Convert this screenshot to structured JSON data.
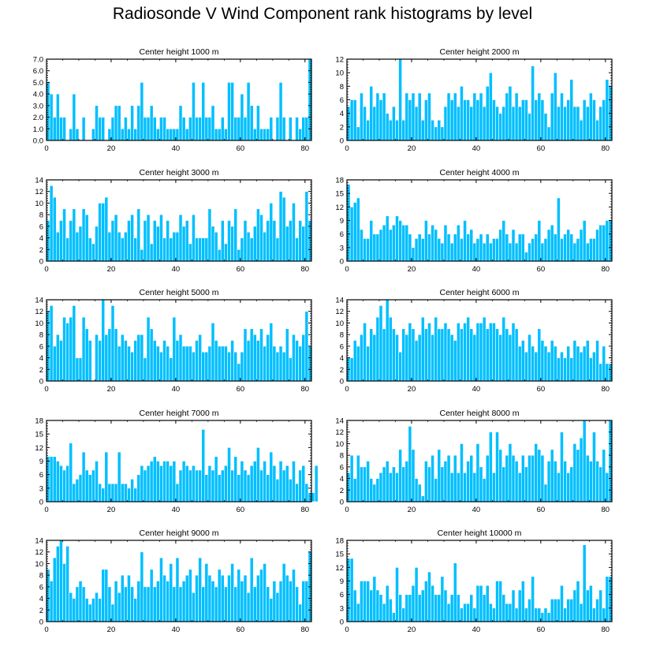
{
  "figure": {
    "title": "Radiosonde V Wind Component rank histograms by level",
    "bar_color": "#00bfff",
    "bar_edge_color": "#ffffff"
  },
  "chart_data": [
    {
      "type": "bar",
      "title": "Center height 1000 m",
      "xlim": [
        0,
        82
      ],
      "ylim": [
        0,
        7
      ],
      "x_ticks": [
        0,
        20,
        40,
        60,
        80
      ],
      "y_ticks": [
        0,
        1,
        2,
        3,
        4,
        5,
        6,
        7
      ],
      "y_tick_labels": [
        "0.0",
        "1.0",
        "2.0",
        "3.0",
        "4.0",
        "5.0",
        "6.0",
        "7.0"
      ],
      "values": [
        5,
        4,
        2,
        4,
        2,
        2,
        0,
        1,
        4,
        1,
        0,
        2,
        0,
        0,
        1,
        3,
        2,
        2,
        0,
        1,
        2,
        3,
        3,
        1,
        2,
        1,
        3,
        1,
        3,
        5,
        2,
        2,
        3,
        2,
        1,
        2,
        2,
        1,
        1,
        1,
        1,
        3,
        2,
        1,
        2,
        5,
        2,
        2,
        5,
        2,
        2,
        3,
        1,
        1,
        2,
        1,
        5,
        5,
        2,
        2,
        4,
        2,
        5,
        3,
        1,
        3,
        1,
        1,
        1,
        2,
        0,
        2,
        5,
        2,
        0,
        2,
        0,
        2,
        1,
        2,
        2,
        7
      ]
    },
    {
      "type": "bar",
      "title": "Center height 2000 m",
      "xlim": [
        0,
        82
      ],
      "ylim": [
        0,
        12
      ],
      "x_ticks": [
        0,
        20,
        40,
        60,
        80
      ],
      "y_ticks": [
        0,
        2,
        4,
        6,
        8,
        10,
        12
      ],
      "y_tick_labels": [
        "0",
        "2",
        "4",
        "6",
        "8",
        "10",
        "12"
      ],
      "values": [
        5,
        6,
        6,
        2,
        7,
        5,
        3,
        8,
        5,
        7,
        6,
        7,
        4,
        3,
        5,
        3,
        12,
        3,
        7,
        6,
        7,
        5,
        7,
        3,
        6,
        7,
        3,
        2,
        3,
        2,
        5,
        7,
        6,
        7,
        5,
        8,
        6,
        6,
        5,
        7,
        6,
        7,
        5,
        8,
        10,
        6,
        5,
        4,
        5,
        7,
        8,
        5,
        7,
        5,
        6,
        6,
        4,
        11,
        6,
        7,
        6,
        4,
        2,
        7,
        10,
        5,
        7,
        5,
        6,
        9,
        5,
        5,
        3,
        6,
        5,
        7,
        6,
        3,
        5,
        6,
        9,
        8
      ]
    },
    {
      "type": "bar",
      "title": "Center height 3000 m",
      "xlim": [
        0,
        82
      ],
      "ylim": [
        0,
        14
      ],
      "x_ticks": [
        0,
        20,
        40,
        60,
        80
      ],
      "y_ticks": [
        0,
        2,
        4,
        6,
        8,
        10,
        12,
        14
      ],
      "y_tick_labels": [
        "0",
        "2",
        "4",
        "6",
        "8",
        "10",
        "12",
        "14"
      ],
      "values": [
        7,
        13,
        11,
        5,
        7,
        9,
        4,
        7,
        9,
        5,
        6,
        9,
        8,
        4,
        3,
        6,
        10,
        10,
        11,
        5,
        7,
        8,
        5,
        4,
        5,
        7,
        8,
        4,
        9,
        2,
        7,
        8,
        3,
        7,
        6,
        8,
        4,
        7,
        4,
        5,
        5,
        8,
        6,
        7,
        3,
        8,
        4,
        4,
        4,
        4,
        9,
        6,
        5,
        2,
        7,
        3,
        7,
        6,
        9,
        2,
        4,
        7,
        5,
        4,
        6,
        9,
        8,
        5,
        7,
        10,
        7,
        4,
        12,
        11,
        6,
        7,
        10,
        4,
        7,
        6,
        12,
        7
      ]
    },
    {
      "type": "bar",
      "title": "Center height 4000 m",
      "xlim": [
        0,
        82
      ],
      "ylim": [
        0,
        18
      ],
      "x_ticks": [
        0,
        20,
        40,
        60,
        80
      ],
      "y_ticks": [
        0,
        3,
        6,
        9,
        12,
        15,
        18
      ],
      "y_tick_labels": [
        "0",
        "3",
        "6",
        "9",
        "12",
        "15",
        "18"
      ],
      "values": [
        17,
        12,
        13,
        14,
        7,
        5,
        5,
        9,
        6,
        6,
        7,
        8,
        10,
        7,
        8,
        10,
        9,
        8,
        8,
        6,
        3,
        5,
        6,
        5,
        9,
        6,
        8,
        7,
        5,
        4,
        8,
        6,
        4,
        6,
        8,
        5,
        9,
        6,
        7,
        4,
        5,
        6,
        4,
        6,
        4,
        5,
        5,
        7,
        9,
        6,
        4,
        7,
        4,
        6,
        6,
        2,
        4,
        5,
        6,
        9,
        4,
        5,
        7,
        8,
        6,
        14,
        5,
        6,
        7,
        6,
        4,
        5,
        7,
        9,
        4,
        5,
        5,
        7,
        8,
        8,
        9,
        9
      ]
    },
    {
      "type": "bar",
      "title": "Center height 5000 m",
      "xlim": [
        0,
        82
      ],
      "ylim": [
        0,
        14
      ],
      "x_ticks": [
        0,
        20,
        40,
        60,
        80
      ],
      "y_ticks": [
        0,
        2,
        4,
        6,
        8,
        10,
        12,
        14
      ],
      "y_tick_labels": [
        "0",
        "2",
        "4",
        "6",
        "8",
        "10",
        "12",
        "14"
      ],
      "values": [
        12,
        13,
        6,
        8,
        7,
        11,
        10,
        11,
        13,
        4,
        4,
        11,
        9,
        7,
        0,
        8,
        7,
        14,
        8,
        9,
        13,
        9,
        6,
        8,
        7,
        6,
        5,
        7,
        8,
        8,
        4,
        11,
        9,
        7,
        6,
        5,
        7,
        6,
        4,
        11,
        7,
        8,
        6,
        6,
        6,
        5,
        7,
        8,
        5,
        5,
        6,
        10,
        7,
        6,
        6,
        6,
        5,
        7,
        5,
        3,
        5,
        9,
        7,
        9,
        8,
        7,
        9,
        6,
        8,
        10,
        6,
        5,
        6,
        5,
        9,
        4,
        8,
        7,
        6,
        8,
        12,
        6
      ]
    },
    {
      "type": "bar",
      "title": "Center height 6000 m",
      "xlim": [
        0,
        82
      ],
      "ylim": [
        0,
        14
      ],
      "x_ticks": [
        0,
        20,
        40,
        60,
        80
      ],
      "y_ticks": [
        0,
        2,
        4,
        6,
        8,
        10,
        12,
        14
      ],
      "y_tick_labels": [
        "0",
        "2",
        "4",
        "6",
        "8",
        "10",
        "12",
        "14"
      ],
      "values": [
        4,
        4,
        7,
        6,
        8,
        10,
        6,
        9,
        8,
        11,
        13,
        9,
        14,
        11,
        9,
        8,
        5,
        9,
        8,
        10,
        9,
        7,
        8,
        11,
        9,
        10,
        8,
        11,
        9,
        9,
        10,
        9,
        8,
        7,
        10,
        9,
        10,
        11,
        9,
        8,
        10,
        10,
        11,
        9,
        10,
        10,
        9,
        8,
        11,
        9,
        8,
        10,
        9,
        6,
        7,
        5,
        8,
        6,
        5,
        9,
        7,
        6,
        5,
        7,
        6,
        4,
        5,
        4,
        6,
        4,
        7,
        6,
        5,
        6,
        7,
        4,
        5,
        7,
        3,
        6,
        3,
        3
      ]
    },
    {
      "type": "bar",
      "title": "Center height 7000 m",
      "xlim": [
        0,
        82
      ],
      "ylim": [
        0,
        18
      ],
      "x_ticks": [
        0,
        20,
        40,
        60,
        80
      ],
      "y_ticks": [
        0,
        3,
        6,
        9,
        12,
        15,
        18
      ],
      "y_tick_labels": [
        "0",
        "3",
        "6",
        "9",
        "12",
        "15",
        "18"
      ],
      "values": [
        10,
        10,
        10,
        9,
        8,
        7,
        8,
        13,
        4,
        5,
        6,
        11,
        7,
        6,
        7,
        9,
        4,
        3,
        11,
        4,
        4,
        4,
        11,
        4,
        4,
        3,
        5,
        3,
        6,
        8,
        7,
        8,
        9,
        10,
        9,
        8,
        9,
        9,
        8,
        9,
        4,
        7,
        9,
        8,
        7,
        8,
        7,
        7,
        16,
        6,
        8,
        7,
        10,
        6,
        7,
        8,
        12,
        7,
        10,
        6,
        9,
        7,
        6,
        8,
        9,
        12,
        7,
        9,
        6,
        11,
        8,
        5,
        9,
        7,
        8,
        5,
        9,
        4,
        7,
        8,
        4,
        2,
        2,
        8
      ]
    },
    {
      "type": "bar",
      "title": "Center height 8000 m",
      "xlim": [
        0,
        82
      ],
      "ylim": [
        0,
        14
      ],
      "x_ticks": [
        0,
        20,
        40,
        60,
        80
      ],
      "y_ticks": [
        0,
        2,
        4,
        6,
        8,
        10,
        12,
        14
      ],
      "y_tick_labels": [
        "0",
        "2",
        "4",
        "6",
        "8",
        "10",
        "12",
        "14"
      ],
      "values": [
        5,
        8,
        4,
        8,
        6,
        6,
        7,
        4,
        3,
        4,
        5,
        6,
        7,
        5,
        6,
        5,
        9,
        6,
        7,
        13,
        9,
        4,
        3,
        1,
        7,
        6,
        8,
        4,
        9,
        6,
        7,
        8,
        5,
        8,
        5,
        10,
        5,
        7,
        8,
        5,
        10,
        6,
        4,
        8,
        12,
        5,
        12,
        9,
        6,
        8,
        10,
        8,
        7,
        5,
        8,
        6,
        8,
        8,
        10,
        9,
        8,
        3,
        7,
        9,
        7,
        5,
        12,
        7,
        5,
        6,
        10,
        9,
        11,
        14,
        8,
        7,
        12,
        7,
        6,
        9,
        5,
        14
      ]
    },
    {
      "type": "bar",
      "title": "Center height 9000 m",
      "xlim": [
        0,
        82
      ],
      "ylim": [
        0,
        14
      ],
      "x_ticks": [
        0,
        20,
        40,
        60,
        80
      ],
      "y_ticks": [
        0,
        2,
        4,
        6,
        8,
        10,
        12,
        14
      ],
      "y_tick_labels": [
        "0",
        "2",
        "4",
        "6",
        "8",
        "10",
        "12",
        "14"
      ],
      "values": [
        9,
        7,
        11,
        13,
        14,
        10,
        13,
        5,
        4,
        6,
        7,
        6,
        4,
        3,
        4,
        5,
        4,
        9,
        9,
        6,
        3,
        7,
        5,
        8,
        6,
        8,
        6,
        4,
        7,
        12,
        6,
        6,
        9,
        6,
        7,
        11,
        8,
        7,
        10,
        6,
        11,
        6,
        7,
        8,
        9,
        5,
        8,
        11,
        6,
        10,
        8,
        7,
        6,
        9,
        8,
        6,
        8,
        10,
        6,
        9,
        7,
        8,
        5,
        11,
        6,
        8,
        9,
        10,
        6,
        4,
        7,
        5,
        7,
        10,
        8,
        7,
        9,
        6,
        3,
        7,
        7,
        12
      ]
    },
    {
      "type": "bar",
      "title": "Center height 10000 m",
      "xlim": [
        0,
        82
      ],
      "ylim": [
        0,
        18
      ],
      "x_ticks": [
        0,
        20,
        40,
        60,
        80
      ],
      "y_ticks": [
        0,
        3,
        6,
        9,
        12,
        15,
        18
      ],
      "y_tick_labels": [
        "0",
        "3",
        "6",
        "9",
        "12",
        "15",
        "18"
      ],
      "values": [
        14,
        14,
        7,
        4,
        9,
        9,
        9,
        7,
        10,
        7,
        6,
        4,
        8,
        5,
        2,
        12,
        6,
        3,
        6,
        6,
        8,
        12,
        6,
        7,
        9,
        11,
        8,
        6,
        6,
        10,
        7,
        4,
        6,
        13,
        6,
        3,
        4,
        4,
        6,
        3,
        8,
        8,
        6,
        8,
        4,
        3,
        9,
        9,
        6,
        4,
        4,
        7,
        3,
        7,
        9,
        3,
        5,
        10,
        3,
        3,
        2,
        3,
        2,
        5,
        5,
        5,
        8,
        3,
        5,
        5,
        7,
        9,
        4,
        17,
        7,
        8,
        3,
        5,
        7,
        3,
        10,
        10
      ]
    }
  ]
}
